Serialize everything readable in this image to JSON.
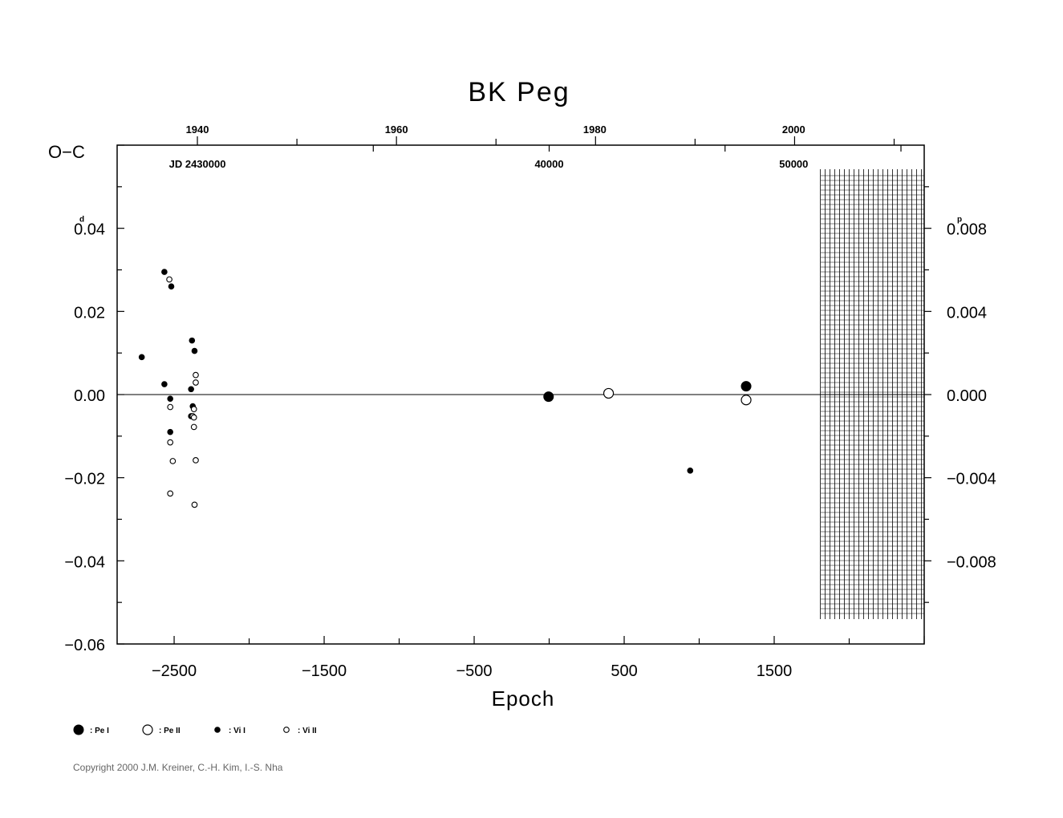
{
  "chart_data": {
    "type": "scatter",
    "title": "BK  Peg",
    "ylabel": "O−C",
    "xlabel": "Epoch",
    "xlim": [
      -2880,
      2500
    ],
    "ylim": [
      -0.06,
      0.06
    ],
    "y2lim": [
      -0.012,
      0.012
    ],
    "y_ticks": [
      "0.04",
      "0.02",
      "0.00",
      "−0.02",
      "−0.04",
      "−0.06"
    ],
    "y_tick_values": [
      0.04,
      0.02,
      0.0,
      -0.02,
      -0.04,
      -0.06
    ],
    "y_unit": "d",
    "y2_ticks": [
      "0.008",
      "0.004",
      "0.000",
      "−0.004",
      "−0.008"
    ],
    "y2_tick_values": [
      0.008,
      0.004,
      0.0,
      -0.004,
      -0.008
    ],
    "y2_unit": "p",
    "x_ticks": [
      "−2500",
      "−1500",
      "−500",
      "500",
      "1500"
    ],
    "x_tick_values": [
      -2500,
      -1500,
      -500,
      500,
      1500
    ],
    "top_year_ticks": [
      "1940",
      "1960",
      "1980",
      "2000"
    ],
    "top_year_values": [
      -2345,
      -1018,
      304,
      1630
    ],
    "jd_labels": [
      "JD  2430000",
      "40000",
      "50000"
    ],
    "jd_values": [
      -2345,
      0,
      1630
    ],
    "future_region_start": 1808,
    "series": [
      {
        "name": ": Pe  I",
        "marker": "big-filled",
        "points": [
          [
            -4,
            -0.0005
          ],
          [
            1313,
            0.002
          ]
        ]
      },
      {
        "name": ": Pe  II",
        "marker": "big-open",
        "points": [
          [
            396,
            0.0003
          ],
          [
            1313,
            -0.0013
          ]
        ]
      },
      {
        "name": ": Vi  I",
        "marker": "small-filled",
        "points": [
          [
            -2716,
            0.009
          ],
          [
            -2565,
            0.0295
          ],
          [
            -2519,
            0.026
          ],
          [
            -2565,
            0.0025
          ],
          [
            -2526,
            -0.001
          ],
          [
            -2526,
            -0.009
          ],
          [
            -2381,
            0.013
          ],
          [
            -2364,
            0.0105
          ],
          [
            -2387,
            0.0013
          ],
          [
            -2376,
            -0.0028
          ],
          [
            -2387,
            -0.0052
          ],
          [
            940,
            -0.0183
          ]
        ]
      },
      {
        "name": ": Vi  II",
        "marker": "small-open",
        "points": [
          [
            -2532,
            0.0277
          ],
          [
            -2356,
            0.0047
          ],
          [
            -2356,
            0.0029
          ],
          [
            -2526,
            -0.003
          ],
          [
            -2368,
            -0.0035
          ],
          [
            -2376,
            -0.0052
          ],
          [
            -2368,
            -0.0055
          ],
          [
            -2368,
            -0.0078
          ],
          [
            -2526,
            -0.0115
          ],
          [
            -2509,
            -0.016
          ],
          [
            -2356,
            -0.0158
          ],
          [
            -2526,
            -0.0238
          ],
          [
            -2364,
            -0.0265
          ]
        ]
      }
    ]
  },
  "copyright": "Copyright 2000 J.M. Kreiner, C.-H. Kim, I.-S. Nha"
}
